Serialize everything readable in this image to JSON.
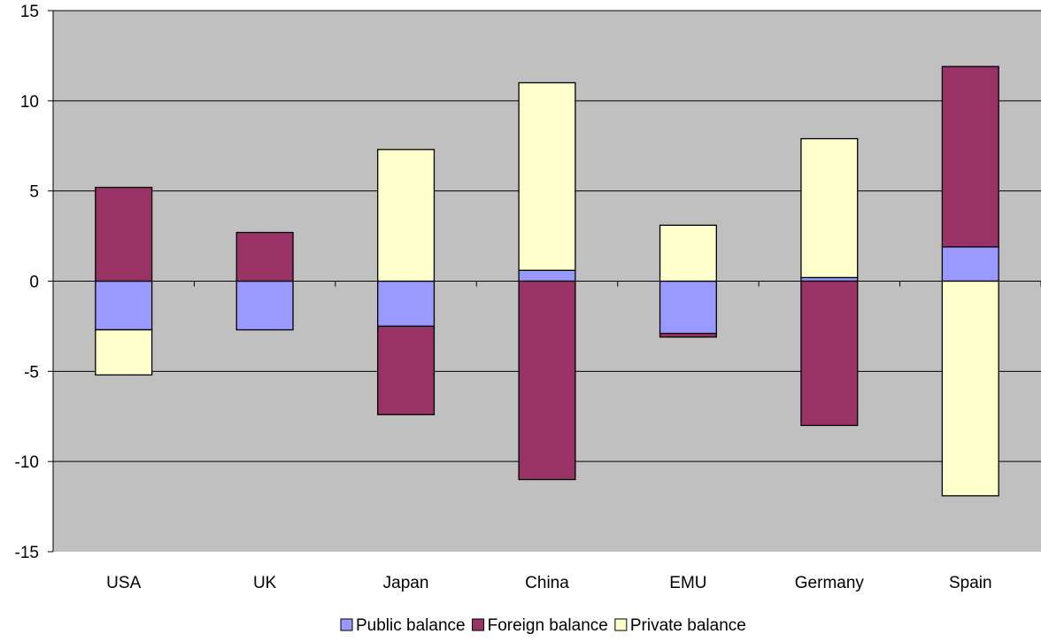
{
  "chart_data": {
    "type": "bar",
    "stacked": true,
    "title": "",
    "xlabel": "",
    "ylabel": "",
    "categories": [
      "USA",
      "UK",
      "Japan",
      "China",
      "EMU",
      "Germany",
      "Spain"
    ],
    "ylim": [
      -15,
      15
    ],
    "yticks": [
      15,
      10,
      5,
      0,
      -5,
      -10,
      -15
    ],
    "ytick_labels": [
      "15",
      "10",
      "5",
      "0",
      "-5",
      "-10",
      "-15"
    ],
    "grid": true,
    "plot_background": "#c0c0c0",
    "legend_position": "bottom",
    "series": [
      {
        "name": "Public balance",
        "color": "#9999ff",
        "values": [
          -2.7,
          -2.7,
          -2.5,
          0.6,
          -2.9,
          0.2,
          1.9
        ]
      },
      {
        "name": "Foreign balance",
        "color": "#993366",
        "values": [
          5.2,
          2.7,
          -4.9,
          -11.0,
          -0.2,
          -8.0,
          10.0
        ]
      },
      {
        "name": "Private balance",
        "color": "#ffffcc",
        "values": [
          -2.5,
          0,
          7.3,
          10.4,
          3.1,
          7.7,
          -11.9
        ]
      }
    ]
  }
}
